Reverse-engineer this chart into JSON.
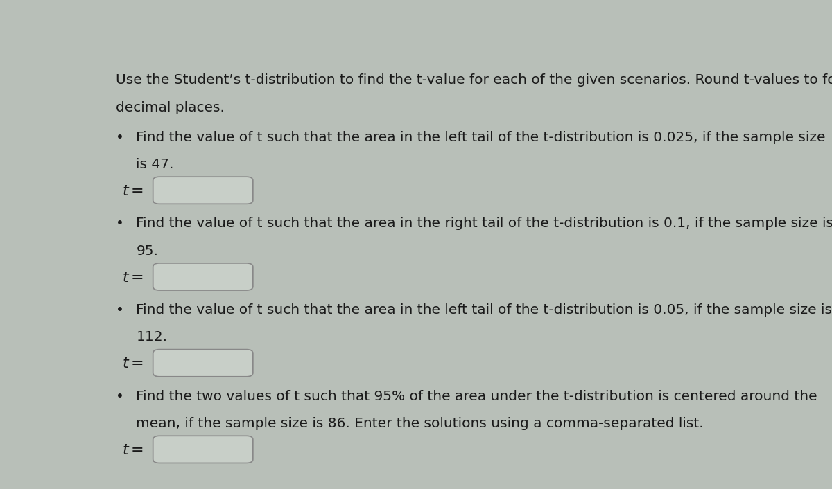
{
  "background_color": "#b8bfb8",
  "text_color": "#1a1a1a",
  "header_line1": "Use the Student’s t-distribution to find the t-value for each of the given scenarios. Round t-values to four",
  "header_line2": "decimal places.",
  "questions": [
    {
      "line1": "Find the value of t such that the area in the left tail of the t-distribution is 0.025, if the sample size",
      "line2": "is 47."
    },
    {
      "line1": "Find the value of t such that the area in the right tail of the t-distribution is 0.1, if the sample size is",
      "line2": "95."
    },
    {
      "line1": "Find the value of t such that the area in the left tail of the t-distribution is 0.05, if the sample size is",
      "line2": "112."
    },
    {
      "line1": "Find the two values of t such that 95% of the area under the t-distribution is centered around the",
      "line2": "mean, if the sample size is 86. Enter the solutions using a comma-separated list."
    }
  ],
  "input_box_fill": "#c8cfc8",
  "input_box_border": "#888888",
  "bullet": "•",
  "font_size": 14.5,
  "t_label_font_size": 16
}
